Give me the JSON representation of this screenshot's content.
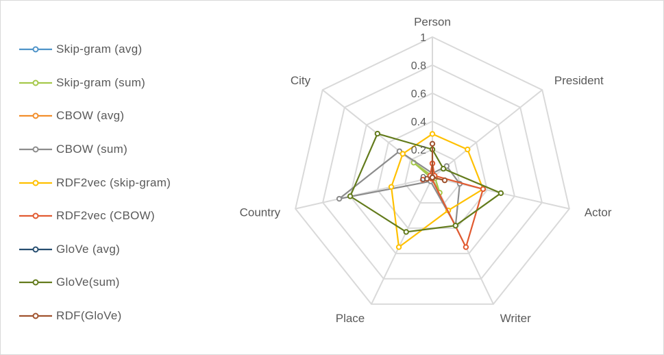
{
  "chart_data": {
    "type": "radar",
    "categories": [
      "Person",
      "President",
      "Actor",
      "Writer",
      "Place",
      "Country",
      "City"
    ],
    "radial_ticks": [
      "0",
      "0.2",
      "0.4",
      "0.6",
      "0.8",
      "1"
    ],
    "rlim": [
      0,
      1
    ],
    "grid": true,
    "legend_position": "left",
    "series": [
      {
        "name": "Skip-gram (avg)",
        "color": "#4e93c8",
        "values": [
          0.0,
          0.0,
          0.0,
          0.0,
          0.0,
          0.0,
          0.0
        ]
      },
      {
        "name": "Skip-gram (sum)",
        "color": "#a5c84a",
        "values": [
          0.01,
          0.02,
          0.02,
          0.12,
          0.01,
          0.01,
          0.17
        ]
      },
      {
        "name": "CBOW (avg)",
        "color": "#f28e2b",
        "values": [
          0.0,
          0.0,
          0.0,
          0.0,
          0.0,
          0.0,
          0.0
        ]
      },
      {
        "name": "CBOW (sum)",
        "color": "#8c8c8c",
        "values": [
          0.03,
          0.13,
          0.2,
          0.38,
          0.03,
          0.68,
          0.3
        ]
      },
      {
        "name": "RDF2vec (skip-gram)",
        "color": "#ffc000",
        "values": [
          0.31,
          0.32,
          0.37,
          0.26,
          0.55,
          0.3,
          0.27
        ]
      },
      {
        "name": "RDF2vec (CBOW)",
        "color": "#e15a30",
        "values": [
          0.1,
          0.02,
          0.37,
          0.55,
          0.01,
          0.07,
          0.02
        ]
      },
      {
        "name": "GloVe (avg)",
        "color": "#264e70",
        "values": [
          0.0,
          0.0,
          0.0,
          0.0,
          0.0,
          0.0,
          0.0
        ]
      },
      {
        "name": "GloVe(sum)",
        "color": "#637b1c",
        "values": [
          0.2,
          0.1,
          0.5,
          0.38,
          0.43,
          0.6,
          0.5
        ]
      },
      {
        "name": "RDF(GloVe)",
        "color": "#a0522d",
        "values": [
          0.24,
          0.0,
          0.09,
          0.0,
          0.0,
          0.04,
          0.0
        ]
      }
    ]
  }
}
